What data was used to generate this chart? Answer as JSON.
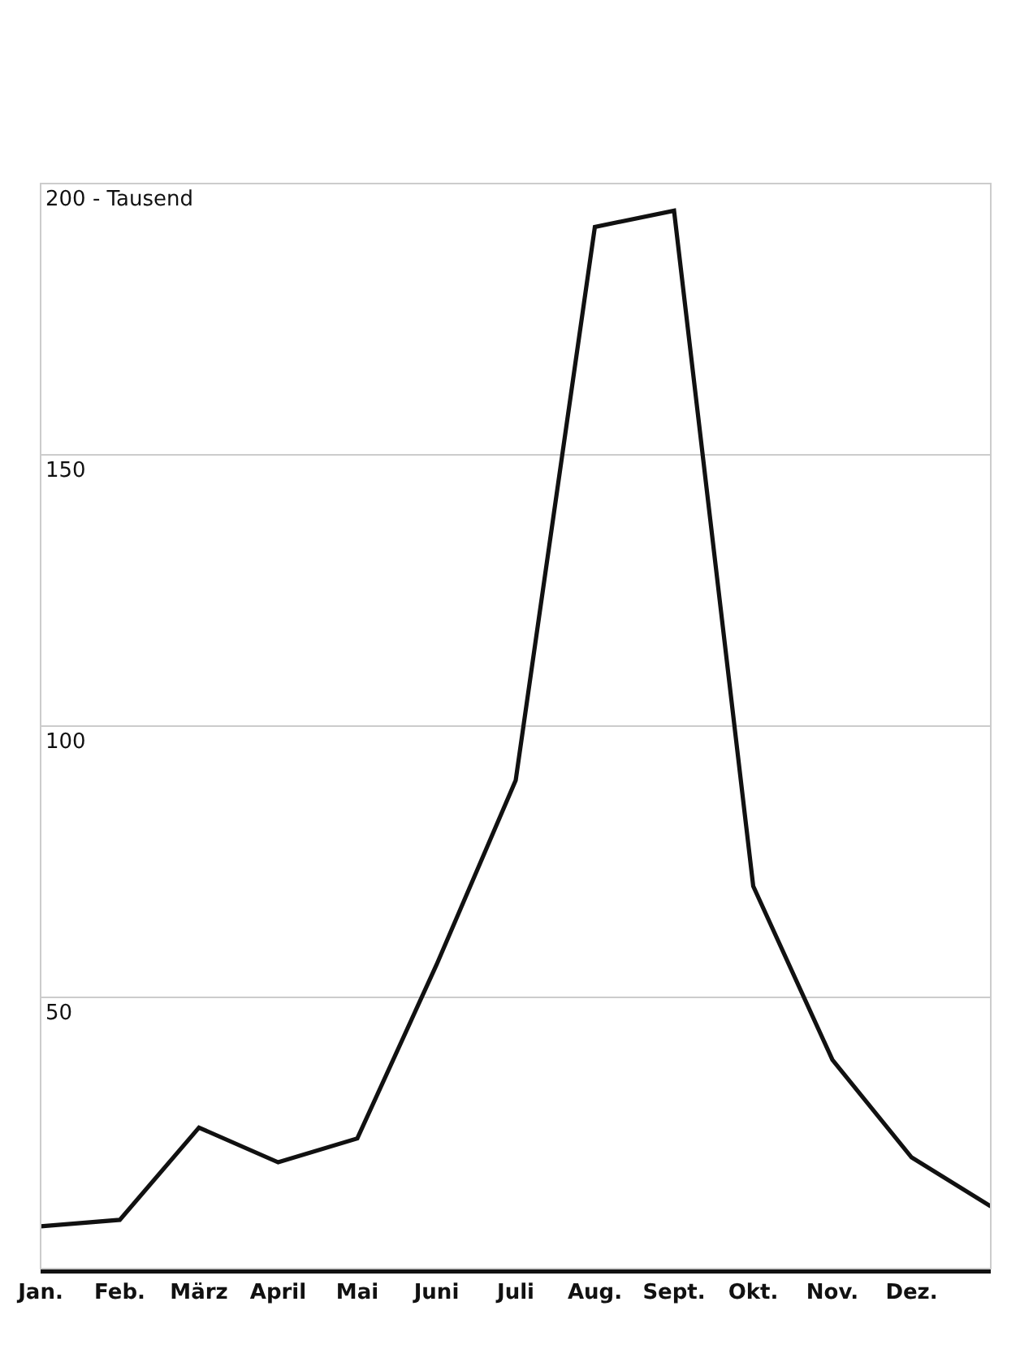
{
  "chart_data": {
    "type": "line",
    "categories": [
      "Jan.",
      "Feb.",
      "März",
      "April",
      "Mai",
      "Juni",
      "Juli",
      "Aug.",
      "Sept.",
      "Okt.",
      "Nov.",
      "Dez.",
      null
    ],
    "series": [
      {
        "color": "#111111",
        "values": [
          7.8,
          9,
          26,
          19.6,
          24,
          56,
          90,
          192,
          195,
          70.5,
          38.5,
          20.5,
          11.5
        ]
      }
    ],
    "ylim": [
      0,
      200
    ],
    "yticks": [
      50,
      100,
      150,
      {
        "value": 200,
        "label": "200 - Tausend"
      }
    ],
    "grid": "y",
    "marker": "none",
    "line_style": "solid"
  }
}
